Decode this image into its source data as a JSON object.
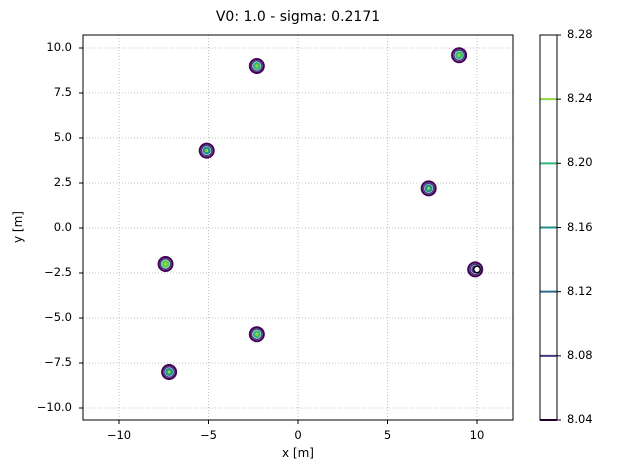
{
  "chart_data": {
    "type": "contour",
    "title": "V0: 1.0 - sigma: 0.2171",
    "xlabel": "x [m]",
    "ylabel": "y [m]",
    "xlim": [
      -12,
      12
    ],
    "ylim": [
      -10.7,
      10.7
    ],
    "xticks": [
      -10,
      -5,
      0,
      5,
      10
    ],
    "xtick_labels": [
      "−10",
      "−5",
      "0",
      "5",
      "10"
    ],
    "yticks": [
      10.0,
      7.5,
      5.0,
      2.5,
      0.0,
      -2.5,
      -5.0,
      -7.5,
      -10.0
    ],
    "ytick_labels": [
      "10.0",
      "7.5",
      "5.0",
      "2.5",
      "0.0",
      "−2.5",
      "−5.0",
      "−7.5",
      "−10.0"
    ],
    "grid": true,
    "grid_style": "dotted",
    "colormap": "viridis",
    "colorbar": {
      "levels": [
        8.04,
        8.08,
        8.12,
        8.16,
        8.2,
        8.24,
        8.28
      ],
      "labels": [
        "8.04",
        "8.08",
        "8.12",
        "8.16",
        "8.20",
        "8.24",
        "8.28"
      ],
      "colors": [
        "#440154",
        "#443983",
        "#31688e",
        "#21918c",
        "#35b779",
        "#90d743",
        "#fde725"
      ]
    },
    "peaks": [
      {
        "x": -2.3,
        "y": 9.0,
        "inner": "#35b779"
      },
      {
        "x": 9.0,
        "y": 9.6,
        "inner": "#35b779"
      },
      {
        "x": -5.1,
        "y": 4.3,
        "inner": "#21918c"
      },
      {
        "x": 7.3,
        "y": 2.2,
        "inner": "#21918c"
      },
      {
        "x": -7.4,
        "y": -2.0,
        "inner": "#5ec962"
      },
      {
        "x": 9.9,
        "y": -2.3,
        "inner": "#443983"
      },
      {
        "x": -2.3,
        "y": -5.9,
        "inner": "#35b779"
      },
      {
        "x": -7.2,
        "y": -8.0,
        "inner": "#21918c"
      }
    ],
    "marker": {
      "x": 10.0,
      "y": -2.3,
      "shape": "open-circle"
    }
  }
}
